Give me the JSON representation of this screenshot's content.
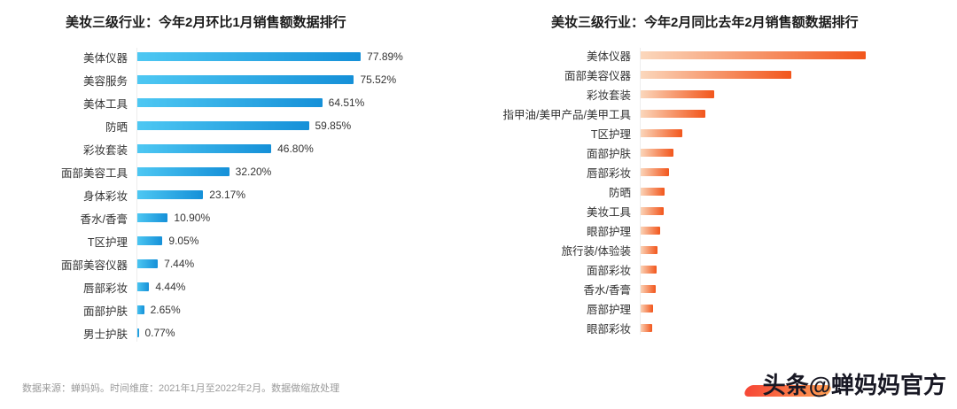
{
  "chart_data": [
    {
      "type": "bar",
      "orientation": "horizontal",
      "title": "美妆三级行业：今年2月环比1月销售额数据排行",
      "categories": [
        "美体仪器",
        "美容服务",
        "美体工具",
        "防晒",
        "彩妆套装",
        "面部美容工具",
        "身体彩妆",
        "香水/香膏",
        "T区护理",
        "面部美容仪器",
        "唇部彩妆",
        "面部护肤",
        "男士护肤"
      ],
      "values": [
        77.89,
        75.52,
        64.51,
        59.85,
        46.8,
        32.2,
        23.17,
        10.9,
        9.05,
        7.44,
        4.44,
        2.65,
        0.77
      ],
      "value_labels": [
        "77.89%",
        "75.52%",
        "64.51%",
        "59.85%",
        "46.80%",
        "32.20%",
        "23.17%",
        "10.90%",
        "9.05%",
        "7.44%",
        "4.44%",
        "2.65%",
        "0.77%"
      ],
      "value_axis_max": 80,
      "ylabel": "",
      "xlabel": "",
      "grid": false,
      "legend": false
    },
    {
      "type": "bar",
      "orientation": "horizontal",
      "title": "美妆三级行业：今年2月同比去年2月销售额数据排行",
      "categories": [
        "美体仪器",
        "面部美容仪器",
        "彩妆套装",
        "指甲油/美甲产品/美甲工具",
        "T区护理",
        "面部护肤",
        "唇部彩妆",
        "防晒",
        "美妆工具",
        "眼部护理",
        "旅行装/体验装",
        "面部彩妆",
        "香水/香膏",
        "唇部护理",
        "眼部彩妆"
      ],
      "values": [
        100,
        67,
        33,
        29,
        19,
        15,
        13,
        11,
        10.5,
        9,
        8,
        7.5,
        7,
        6,
        5.5
      ],
      "values_note": "no numeric labels shown in chart; values are relative bar lengths estimated with longest bar = 100",
      "value_axis_max": 100,
      "ylabel": "",
      "xlabel": "",
      "grid": false,
      "legend": false
    }
  ],
  "footer": {
    "source_note": "数据来源：蝉妈妈。时间维度：2021年1月至2022年2月。数据做缩放处理"
  },
  "watermark": {
    "platform": "头条",
    "account": "@蝉妈妈官方"
  },
  "colors": {
    "bar_blue_start": "#4ec8f3",
    "bar_blue_end": "#1590d8",
    "bar_orange_start": "#fbd8bd",
    "bar_orange_end": "#f2561c",
    "title_text": "#1b1b1b",
    "label_text": "#333333",
    "footer_text": "#9b9b9b",
    "watermark_gradient_start": "#f5321f",
    "watermark_gradient_end": "#ff9340"
  }
}
